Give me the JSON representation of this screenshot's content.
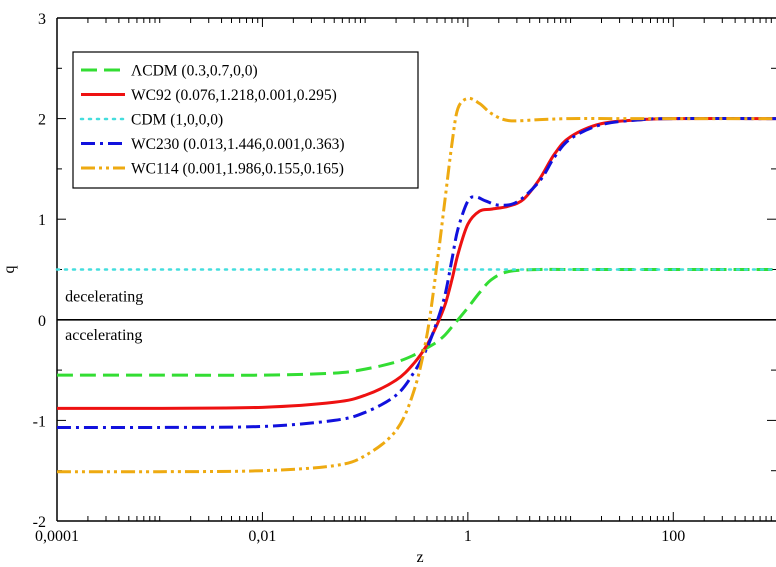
{
  "chart_data": {
    "type": "line",
    "title": "",
    "xlabel": "z",
    "ylabel": "q",
    "xscale": "log",
    "xlim": [
      0.0001,
      1000
    ],
    "ylim": [
      -2,
      3
    ],
    "grid": false,
    "legend_position": "top-left",
    "x_ticks": [
      {
        "value": 0.0001,
        "label": "0,0001"
      },
      {
        "value": 0.01,
        "label": "0,01"
      },
      {
        "value": 1,
        "label": "1"
      },
      {
        "value": 100,
        "label": "100"
      }
    ],
    "y_ticks": [
      {
        "value": -2,
        "label": "-2"
      },
      {
        "value": -1,
        "label": "-1"
      },
      {
        "value": 0,
        "label": "0"
      },
      {
        "value": 1,
        "label": "1"
      },
      {
        "value": 2,
        "label": "2"
      },
      {
        "value": 3,
        "label": "3"
      }
    ],
    "annotations": [
      {
        "text": "decelerating",
        "x": 0.00012,
        "y": 0.18
      },
      {
        "text": "accelerating",
        "x": 0.00012,
        "y": -0.2
      }
    ],
    "reference_line": {
      "y": 0,
      "color": "#000000"
    },
    "series": [
      {
        "name": "ΛCDM (0.3,0.7,0,0)",
        "color": "#33dd33",
        "dash": "long-dash",
        "x": [
          0.0001,
          0.001,
          0.01,
          0.05,
          0.1,
          0.2,
          0.3,
          0.4,
          0.5,
          0.6,
          0.7,
          0.8,
          1.0,
          1.3,
          1.7,
          2.5,
          5,
          10,
          100,
          1000
        ],
        "y": [
          -0.55,
          -0.55,
          -0.55,
          -0.53,
          -0.49,
          -0.42,
          -0.35,
          -0.28,
          -0.22,
          -0.15,
          -0.07,
          0.0,
          0.12,
          0.27,
          0.4,
          0.48,
          0.5,
          0.5,
          0.5,
          0.5
        ]
      },
      {
        "name": "WC92 (0.076,1.218,0.001,0.295)",
        "color": "#ee1111",
        "dash": "solid",
        "x": [
          0.0001,
          0.001,
          0.01,
          0.05,
          0.1,
          0.2,
          0.3,
          0.4,
          0.5,
          0.6,
          0.7,
          0.8,
          1.0,
          1.3,
          1.7,
          2.5,
          3.5,
          5,
          7,
          10,
          20,
          50,
          100,
          1000
        ],
        "y": [
          -0.88,
          -0.88,
          -0.87,
          -0.82,
          -0.75,
          -0.6,
          -0.43,
          -0.25,
          -0.05,
          0.15,
          0.4,
          0.65,
          0.95,
          1.08,
          1.1,
          1.13,
          1.2,
          1.4,
          1.65,
          1.82,
          1.95,
          1.99,
          2.0,
          2.0
        ]
      },
      {
        "name": "CDM (1,0,0,0)",
        "color": "#44dddd",
        "dash": "dotted",
        "x": [
          0.0001,
          1000
        ],
        "y": [
          0.5,
          0.5
        ]
      },
      {
        "name": "WC230 (0.013,1.446,0.001,0.363)",
        "color": "#1111dd",
        "dash": "dash-dot",
        "x": [
          0.0001,
          0.001,
          0.01,
          0.05,
          0.1,
          0.2,
          0.3,
          0.4,
          0.5,
          0.6,
          0.7,
          0.8,
          1.0,
          1.2,
          1.5,
          2.0,
          3.0,
          5,
          7,
          10,
          20,
          50,
          100,
          1000
        ],
        "y": [
          -1.07,
          -1.07,
          -1.06,
          -1.0,
          -0.92,
          -0.75,
          -0.52,
          -0.28,
          -0.02,
          0.25,
          0.6,
          0.9,
          1.18,
          1.22,
          1.18,
          1.14,
          1.17,
          1.38,
          1.62,
          1.8,
          1.94,
          1.99,
          2.0,
          2.0
        ]
      },
      {
        "name": "WC114 (0.001,1.986,0.155,0.165)",
        "color": "#eeaa11",
        "dash": "dash-dot-dot",
        "x": [
          0.0001,
          0.001,
          0.01,
          0.05,
          0.1,
          0.2,
          0.3,
          0.4,
          0.5,
          0.6,
          0.7,
          0.8,
          1.0,
          1.3,
          1.7,
          2.5,
          5,
          10,
          30,
          100,
          1000
        ],
        "y": [
          -1.51,
          -1.51,
          -1.5,
          -1.45,
          -1.35,
          -1.1,
          -0.7,
          -0.15,
          0.55,
          1.2,
          1.75,
          2.1,
          2.2,
          2.15,
          2.05,
          1.98,
          1.99,
          2.0,
          2.0,
          2.0,
          2.0
        ]
      }
    ]
  }
}
